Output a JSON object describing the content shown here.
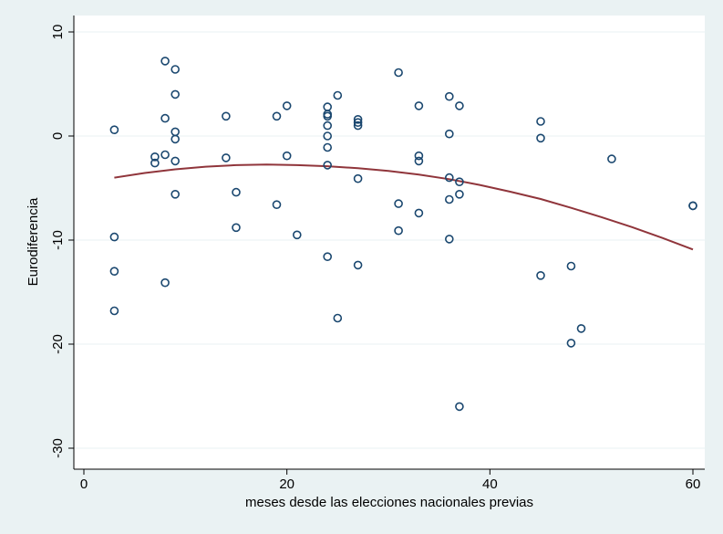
{
  "chart_data": {
    "type": "scatter",
    "xlabel": "meses desde las elecciones nacionales previas",
    "ylabel": "Eurodiferencia",
    "xlim": [
      -1,
      61
    ],
    "ylim": [
      -30.5,
      10.5
    ],
    "xticks": [
      0,
      20,
      40,
      60
    ],
    "yticks": [
      -30,
      -20,
      -10,
      0,
      10
    ],
    "grid": true,
    "background": "#eaf2f3",
    "plot_background": "#ffffff",
    "colors": {
      "points": "#1a476f",
      "fit": "#90353b"
    },
    "series": [
      {
        "type": "scatter",
        "x": [
          3,
          3,
          3,
          3,
          7,
          7,
          8,
          8,
          8,
          8,
          9,
          9,
          9,
          9,
          9,
          9,
          14,
          14,
          15,
          15,
          19,
          19,
          20,
          20,
          21,
          24,
          24,
          24,
          24,
          24,
          24,
          24,
          24,
          25,
          25,
          27,
          27,
          27,
          27,
          27,
          31,
          31,
          31,
          33,
          33,
          33,
          33,
          36,
          36,
          36,
          36,
          36,
          37,
          37,
          37,
          37,
          45,
          45,
          45,
          48,
          48,
          49,
          52,
          60,
          60
        ],
        "y": [
          0.6,
          -9.7,
          -13,
          -16.8,
          -2,
          -2.6,
          7.2,
          1.7,
          -1.8,
          -14.1,
          6.4,
          4,
          0.4,
          -0.3,
          -2.4,
          -5.6,
          1.9,
          -2.1,
          -5.4,
          -8.8,
          1.9,
          -6.6,
          2.9,
          -1.9,
          -9.5,
          2.8,
          2.1,
          1,
          0,
          -1.1,
          -2.8,
          -11.6,
          1.9,
          -17.5,
          3.9,
          1.6,
          1,
          -4.1,
          -12.4,
          1.3,
          -6.5,
          -9.1,
          6.1,
          -1.9,
          -2.4,
          -7.4,
          2.9,
          0.2,
          -4,
          -6.1,
          -9.9,
          3.8,
          -4.4,
          -5.6,
          -26,
          2.9,
          -0.2,
          -13.4,
          1.4,
          -12.5,
          -19.9,
          -18.5,
          -2.2,
          -6.7,
          -6.7
        ]
      },
      {
        "type": "line",
        "x": [
          3,
          6,
          9,
          12,
          15,
          18,
          21,
          24,
          27,
          30,
          33,
          36,
          39,
          42,
          45,
          48,
          51,
          54,
          57,
          60
        ],
        "y": [
          -4.0,
          -3.55,
          -3.2,
          -2.95,
          -2.8,
          -2.75,
          -2.8,
          -2.9,
          -3.1,
          -3.35,
          -3.7,
          -4.15,
          -4.7,
          -5.35,
          -6.05,
          -6.9,
          -7.8,
          -8.75,
          -9.8,
          -10.9
        ]
      }
    ]
  }
}
